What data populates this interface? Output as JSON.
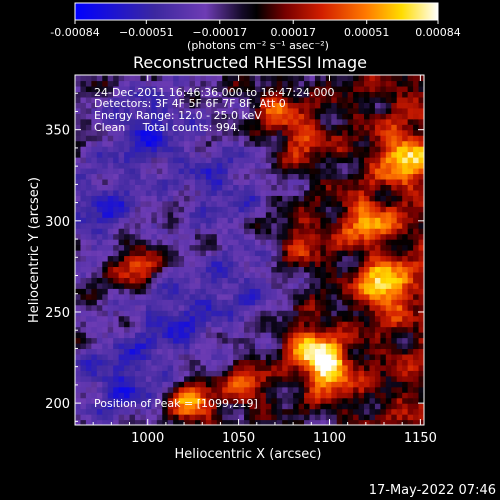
{
  "chart_data": {
    "type": "heatmap",
    "title": "Reconstructed RHESSI Image",
    "xlabel": "Heliocentric X (arcsec)",
    "ylabel": "Heliocentric Y (arcsec)",
    "xlim": [
      960,
      1152
    ],
    "ylim": [
      188,
      380
    ],
    "x_ticks": [
      1000,
      1050,
      1100,
      1150
    ],
    "y_ticks": [
      200,
      250,
      300,
      350
    ],
    "x_tick_labels": [
      "1000",
      "1050",
      "1100",
      "1150"
    ],
    "y_tick_labels": [
      "200",
      "250",
      "300",
      "350"
    ],
    "grid": false,
    "colorscale": [
      "#0000ff",
      "#3c28a0",
      "#6e3cb4",
      "#140a28",
      "#000000",
      "#780000",
      "#d21e00",
      "#ff7800",
      "#ffdc00",
      "#ffffff"
    ],
    "colorbar": {
      "range": [
        -0.00084,
        0.00084
      ],
      "tick_values": [
        -0.00084,
        -0.00051,
        -0.00017,
        0.00017,
        0.00051,
        0.00084
      ],
      "tick_labels": [
        "-0.00084",
        "−0.00051",
        "−0.00017",
        "0.00017",
        "0.00051",
        "0.00084"
      ],
      "unit_label": "(photons cm⁻² s⁻¹ asec⁻²)"
    },
    "info_lines": [
      "24-Dec-2011 16:46:36.000 to 16:47:24.000",
      "Detectors: 3F 4F 5F 6F 7F 8F, Att 0",
      "Energy Range: 12.0 - 25.0 keV",
      "Clean     Total counts: 994."
    ],
    "peak_label": "Position of Peak = [1099,219]",
    "peak": {
      "x": 1099,
      "y": 219
    },
    "bright_regions": [
      {
        "x": 1099,
        "y": 219,
        "intensity": 1.0
      },
      {
        "x": 1088,
        "y": 232,
        "intensity": 0.7
      },
      {
        "x": 1130,
        "y": 265,
        "intensity": 0.85
      },
      {
        "x": 1140,
        "y": 335,
        "intensity": 0.75
      },
      {
        "x": 1120,
        "y": 300,
        "intensity": 0.65
      },
      {
        "x": 1025,
        "y": 200,
        "intensity": 0.85
      },
      {
        "x": 1055,
        "y": 210,
        "intensity": 0.65
      },
      {
        "x": 1070,
        "y": 362,
        "intensity": 0.55
      },
      {
        "x": 1085,
        "y": 345,
        "intensity": 0.5
      },
      {
        "x": 993,
        "y": 277,
        "intensity": 0.7
      },
      {
        "x": 1085,
        "y": 290,
        "intensity": 0.45
      }
    ],
    "dim_regions": [
      {
        "x": 1000,
        "y": 350,
        "intensity": -0.5
      },
      {
        "x": 975,
        "y": 305,
        "intensity": -0.45
      },
      {
        "x": 1015,
        "y": 245,
        "intensity": -0.45
      },
      {
        "x": 1040,
        "y": 320,
        "intensity": -0.4
      },
      {
        "x": 985,
        "y": 212,
        "intensity": -0.5
      },
      {
        "x": 1050,
        "y": 265,
        "intensity": -0.35
      }
    ]
  },
  "footer": {
    "timestamp": "17-May-2022 07:46"
  }
}
